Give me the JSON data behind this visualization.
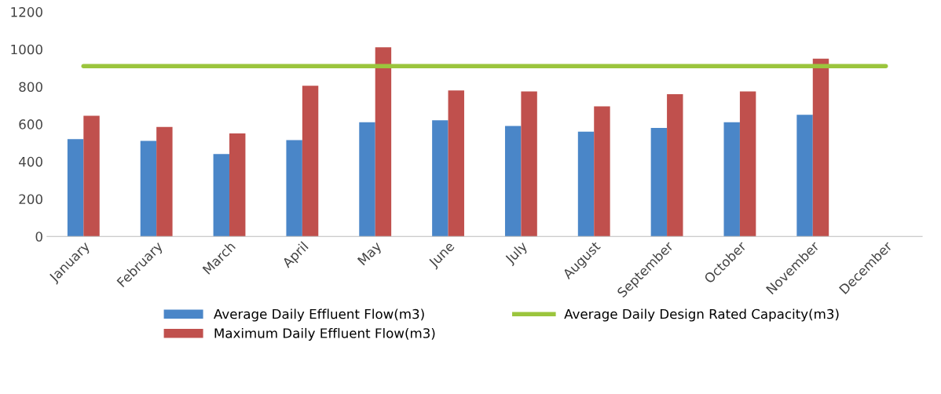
{
  "chart_data": {
    "type": "bar",
    "categories": [
      "January",
      "February",
      "March",
      "April",
      "May",
      "June",
      "July",
      "August",
      "September",
      "October",
      "November",
      "December"
    ],
    "series": [
      {
        "name": "Average Daily Effluent Flow(m3)",
        "color": "#4a86c8",
        "values": [
          520,
          510,
          440,
          515,
          610,
          620,
          590,
          560,
          580,
          610,
          650,
          null
        ]
      },
      {
        "name": "Maximum Daily Effluent Flow(m3)",
        "color": "#c0504d",
        "values": [
          645,
          585,
          550,
          805,
          1010,
          780,
          775,
          695,
          760,
          775,
          950,
          null
        ]
      },
      {
        "name": "Average Daily Design Rated Capacity(m3)",
        "color": "#9bc53d",
        "type": "line",
        "values": [
          910,
          910,
          910,
          910,
          910,
          910,
          910,
          910,
          910,
          910,
          910,
          910
        ]
      }
    ],
    "ylim": [
      0,
      1200
    ],
    "yticks": [
      0,
      200,
      400,
      600,
      800,
      1000,
      1200
    ],
    "grid": false,
    "legend": "bottom"
  }
}
